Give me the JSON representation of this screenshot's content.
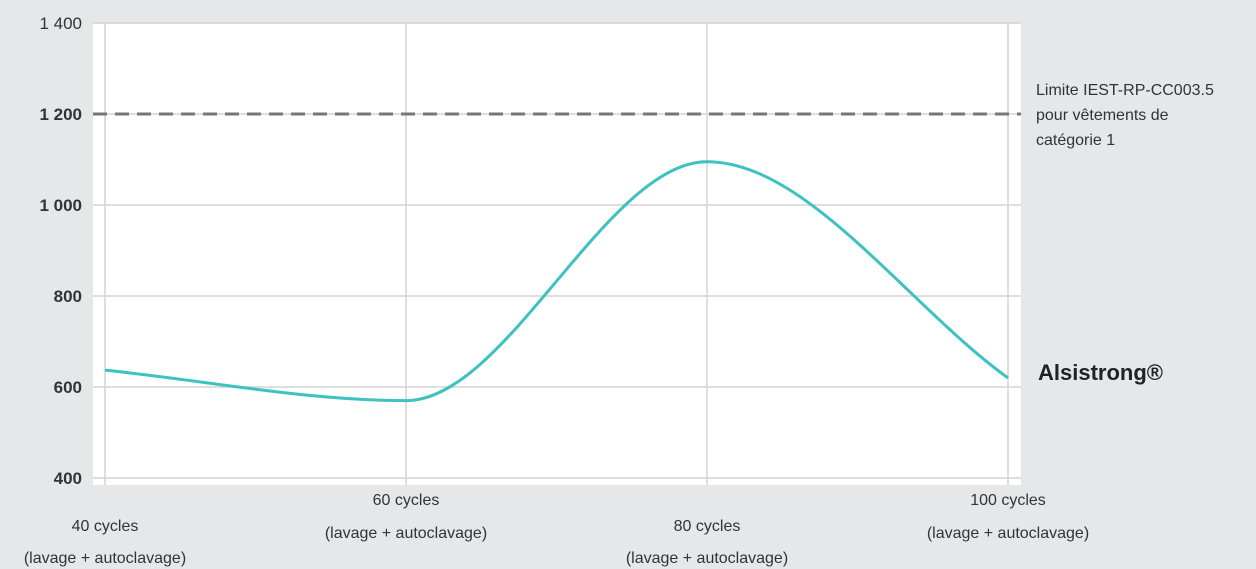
{
  "chart_data": {
    "type": "line",
    "title": "",
    "xlabel": "",
    "ylabel": "",
    "ylim": [
      400,
      1400
    ],
    "y_ticks": [
      {
        "value": 400,
        "label": "400",
        "bold": true
      },
      {
        "value": 600,
        "label": "600",
        "bold": true
      },
      {
        "value": 800,
        "label": "800",
        "bold": true
      },
      {
        "value": 1000,
        "label": "1 000",
        "bold": true
      },
      {
        "value": 1200,
        "label": "1 200",
        "bold": true
      },
      {
        "value": 1400,
        "label": "1 400",
        "bold": false
      }
    ],
    "x_categories": [
      {
        "value": 40,
        "line1": "40 cycles",
        "line2": "(lavage + autoclavage)",
        "position": "low"
      },
      {
        "value": 60,
        "line1": "60 cycles",
        "line2": "(lavage + autoclavage)",
        "position": "high"
      },
      {
        "value": 80,
        "line1": "80 cycles",
        "line2": "(lavage + autoclavage)",
        "position": "low"
      },
      {
        "value": 100,
        "line1": "100 cycles",
        "line2": "(lavage + autoclavage)",
        "position": "high"
      }
    ],
    "series": [
      {
        "name": "Alsistrong®",
        "color": "#3dc1c1",
        "points": [
          {
            "x": 40,
            "y": 637
          },
          {
            "x": 60,
            "y": 570
          },
          {
            "x": 80,
            "y": 1095
          },
          {
            "x": 100,
            "y": 620
          }
        ]
      }
    ],
    "reference_line": {
      "value": 1200,
      "label": "Limite IEST-RP-CC003.5 pour vêtements de catégorie 1",
      "label_lines": [
        "Limite IEST-RP-CC003.5",
        "pour vêtements de",
        "catégorie 1"
      ],
      "color": "#777777",
      "style": "dashed"
    },
    "grid": true,
    "legend": "right"
  }
}
